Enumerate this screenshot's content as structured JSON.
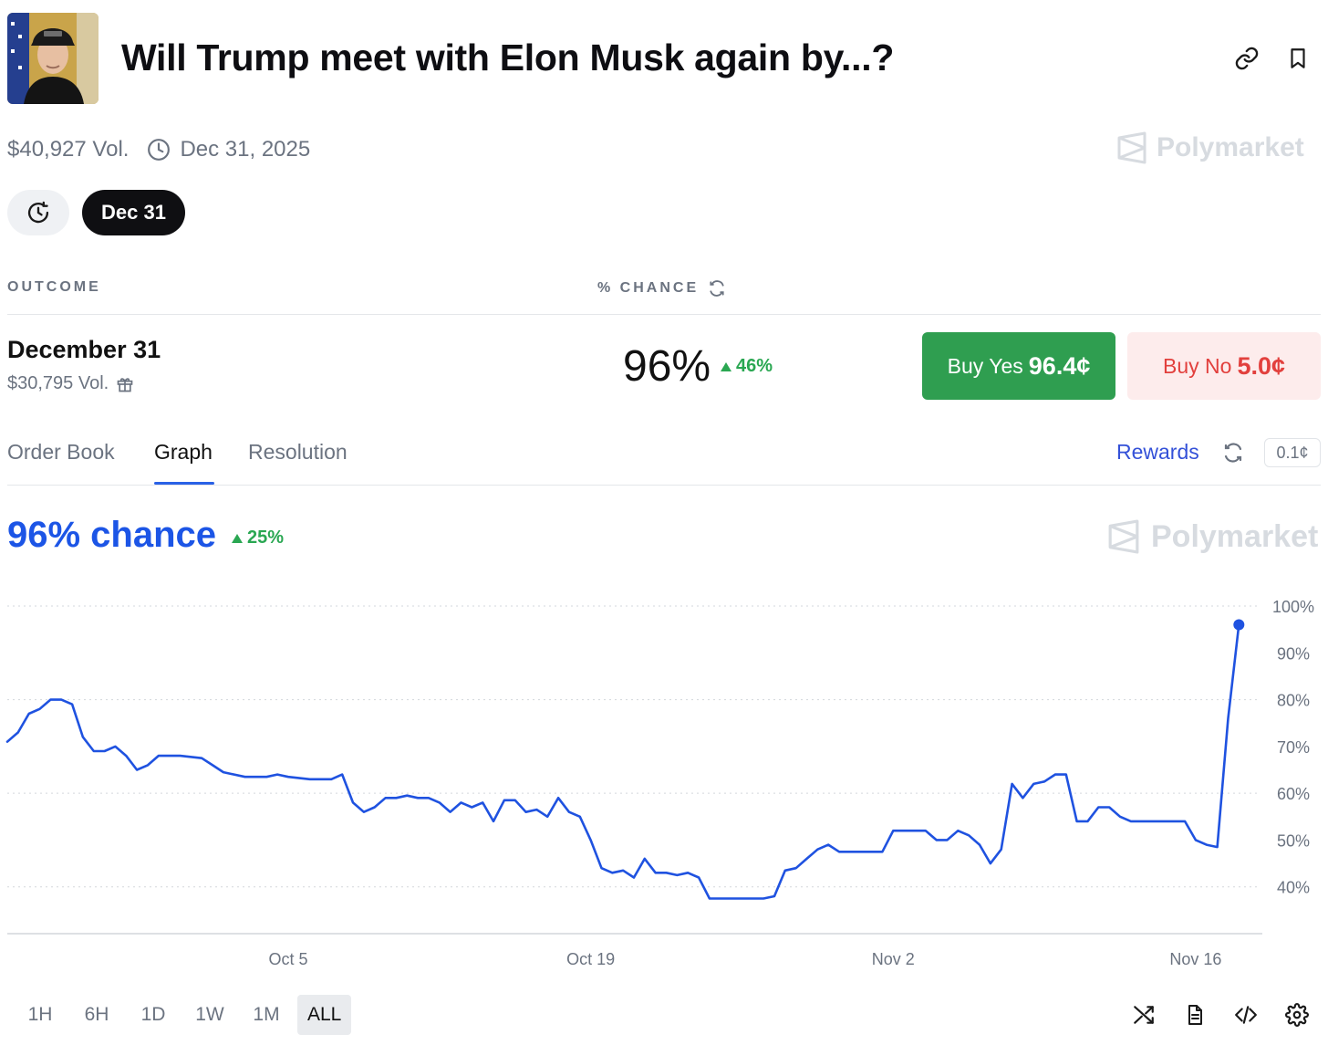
{
  "market": {
    "title": "Will Trump meet with Elon Musk again by...?",
    "volume": "$40,927 Vol.",
    "end_date": "Dec 31, 2025",
    "brand": "Polymarket"
  },
  "date_pills": {
    "selected": "Dec 31"
  },
  "table": {
    "outcome_header": "OUTCOME",
    "chance_header": "% CHANCE"
  },
  "outcome": {
    "name": "December 31",
    "volume": "$30,795 Vol.",
    "chance": "96%",
    "delta": "46%",
    "buy_yes_label": "Buy Yes",
    "buy_yes_price": "96.4¢",
    "buy_no_label": "Buy No",
    "buy_no_price": "5.0¢"
  },
  "tabs": [
    {
      "label": "Order Book"
    },
    {
      "label": "Graph",
      "active": true
    },
    {
      "label": "Resolution"
    }
  ],
  "rewards": {
    "label": "Rewards",
    "tick_size": "0.1¢"
  },
  "graph": {
    "headline": "96% chance",
    "delta": "25%",
    "brand": "Polymarket",
    "line_color": "#1f52e0"
  },
  "time_ranges": [
    {
      "label": "1H"
    },
    {
      "label": "6H"
    },
    {
      "label": "1D"
    },
    {
      "label": "1W"
    },
    {
      "label": "1M"
    },
    {
      "label": "ALL",
      "active": true
    }
  ],
  "icons": {
    "header": [
      "link-icon",
      "bookmark-icon"
    ],
    "toolbar": [
      "shuffle-icon",
      "document-icon",
      "code-icon",
      "settings-icon"
    ]
  },
  "chart_data": {
    "type": "line",
    "title": "",
    "xlabel": "",
    "ylabel": "",
    "ylim": [
      30,
      100
    ],
    "xlim": [
      "2025-09-22",
      "2025-11-19"
    ],
    "x_ticks": [
      {
        "date": "2025-10-05",
        "label": "Oct 5"
      },
      {
        "date": "2025-10-19",
        "label": "Oct 19"
      },
      {
        "date": "2025-11-02",
        "label": "Nov 2"
      },
      {
        "date": "2025-11-16",
        "label": "Nov 16"
      }
    ],
    "y_ticks": [
      {
        "value": 100,
        "label": "100%"
      },
      {
        "value": 90,
        "label": "90%"
      },
      {
        "value": 80,
        "label": "80%"
      },
      {
        "value": 70,
        "label": "70%"
      },
      {
        "value": 60,
        "label": "60%"
      },
      {
        "value": 50,
        "label": "50%"
      },
      {
        "value": 40,
        "label": "40%"
      }
    ],
    "gridlines": [
      100,
      80,
      60,
      40
    ],
    "series": [
      {
        "values": [
          [
            "2025-09-22",
            71
          ],
          [
            "2025-09-22T12:00",
            73
          ],
          [
            "2025-09-23",
            77
          ],
          [
            "2025-09-23T12:00",
            78
          ],
          [
            "2025-09-24",
            80
          ],
          [
            "2025-09-24T12:00",
            80
          ],
          [
            "2025-09-25",
            79
          ],
          [
            "2025-09-25T12:00",
            72
          ],
          [
            "2025-09-26",
            69
          ],
          [
            "2025-09-26T12:00",
            69
          ],
          [
            "2025-09-27",
            70
          ],
          [
            "2025-09-27T12:00",
            68
          ],
          [
            "2025-09-28",
            65
          ],
          [
            "2025-09-28T12:00",
            66
          ],
          [
            "2025-09-29",
            68
          ],
          [
            "2025-09-29T12:00",
            68
          ],
          [
            "2025-09-30",
            68
          ],
          [
            "2025-10-01",
            67.5
          ],
          [
            "2025-10-01T12:00",
            66
          ],
          [
            "2025-10-02",
            64.5
          ],
          [
            "2025-10-03",
            63.5
          ],
          [
            "2025-10-04",
            63.5
          ],
          [
            "2025-10-04T12:00",
            64
          ],
          [
            "2025-10-05",
            63.5
          ],
          [
            "2025-10-06",
            63
          ],
          [
            "2025-10-07",
            63
          ],
          [
            "2025-10-07T12:00",
            64
          ],
          [
            "2025-10-08",
            58
          ],
          [
            "2025-10-08T12:00",
            56
          ],
          [
            "2025-10-09",
            57
          ],
          [
            "2025-10-09T12:00",
            59
          ],
          [
            "2025-10-10",
            59
          ],
          [
            "2025-10-10T12:00",
            59.5
          ],
          [
            "2025-10-11",
            59
          ],
          [
            "2025-10-11T12:00",
            59
          ],
          [
            "2025-10-12",
            58
          ],
          [
            "2025-10-12T12:00",
            56
          ],
          [
            "2025-10-13",
            58
          ],
          [
            "2025-10-13T12:00",
            57
          ],
          [
            "2025-10-14",
            58
          ],
          [
            "2025-10-14T12:00",
            54
          ],
          [
            "2025-10-15",
            58.5
          ],
          [
            "2025-10-15T12:00",
            58.5
          ],
          [
            "2025-10-16",
            56
          ],
          [
            "2025-10-16T12:00",
            56.5
          ],
          [
            "2025-10-17",
            55
          ],
          [
            "2025-10-17T12:00",
            59
          ],
          [
            "2025-10-18",
            56
          ],
          [
            "2025-10-18T12:00",
            55
          ],
          [
            "2025-10-19",
            50
          ],
          [
            "2025-10-19T12:00",
            44
          ],
          [
            "2025-10-20",
            43
          ],
          [
            "2025-10-20T12:00",
            43.5
          ],
          [
            "2025-10-21",
            42
          ],
          [
            "2025-10-21T12:00",
            46
          ],
          [
            "2025-10-22",
            43
          ],
          [
            "2025-10-22T12:00",
            43
          ],
          [
            "2025-10-23",
            42.5
          ],
          [
            "2025-10-23T12:00",
            43
          ],
          [
            "2025-10-24",
            42
          ],
          [
            "2025-10-24T12:00",
            37.5
          ],
          [
            "2025-10-25",
            37.5
          ],
          [
            "2025-10-26",
            37.5
          ],
          [
            "2025-10-27",
            37.5
          ],
          [
            "2025-10-27T12:00",
            38
          ],
          [
            "2025-10-28",
            43.5
          ],
          [
            "2025-10-28T12:00",
            44
          ],
          [
            "2025-10-29",
            46
          ],
          [
            "2025-10-29T12:00",
            48
          ],
          [
            "2025-10-30",
            49
          ],
          [
            "2025-10-30T12:00",
            47.5
          ],
          [
            "2025-10-31",
            47.5
          ],
          [
            "2025-11-01",
            47.5
          ],
          [
            "2025-11-01T12:00",
            47.5
          ],
          [
            "2025-11-02",
            52
          ],
          [
            "2025-11-03",
            52
          ],
          [
            "2025-11-03T12:00",
            52
          ],
          [
            "2025-11-04",
            50
          ],
          [
            "2025-11-04T12:00",
            50
          ],
          [
            "2025-11-05",
            52
          ],
          [
            "2025-11-05T12:00",
            51
          ],
          [
            "2025-11-06",
            49
          ],
          [
            "2025-11-06T12:00",
            45
          ],
          [
            "2025-11-07",
            48
          ],
          [
            "2025-11-07T12:00",
            62
          ],
          [
            "2025-11-08",
            59
          ],
          [
            "2025-11-08T12:00",
            62
          ],
          [
            "2025-11-09",
            62.5
          ],
          [
            "2025-11-09T12:00",
            64
          ],
          [
            "2025-11-10",
            64
          ],
          [
            "2025-11-10T12:00",
            54
          ],
          [
            "2025-11-11",
            54
          ],
          [
            "2025-11-11T12:00",
            57
          ],
          [
            "2025-11-12",
            57
          ],
          [
            "2025-11-12T12:00",
            55
          ],
          [
            "2025-11-13",
            54
          ],
          [
            "2025-11-14",
            54
          ],
          [
            "2025-11-15",
            54
          ],
          [
            "2025-11-15T12:00",
            54
          ],
          [
            "2025-11-16",
            50
          ],
          [
            "2025-11-16T12:00",
            49
          ],
          [
            "2025-11-17",
            48.5
          ],
          [
            "2025-11-17T12:00",
            76
          ],
          [
            "2025-11-18",
            96
          ]
        ]
      }
    ]
  }
}
